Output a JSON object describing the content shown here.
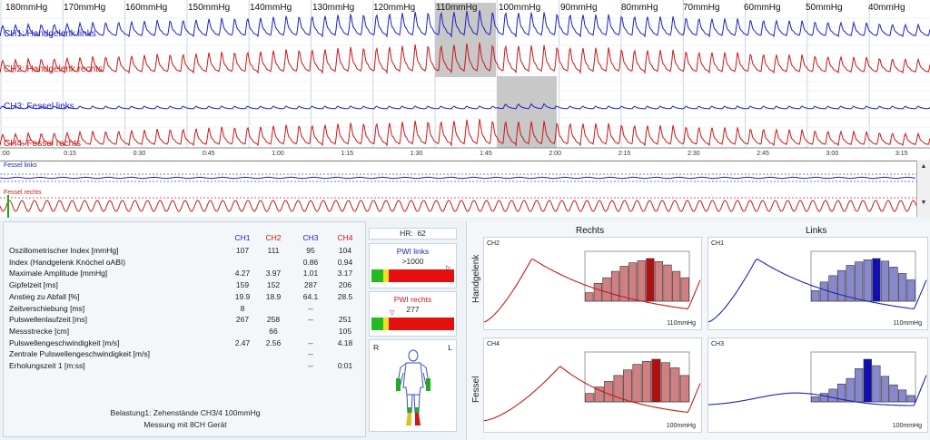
{
  "waveform": {
    "pressure_labels": [
      "180mmHg",
      "170mmHg",
      "160mmHg",
      "150mmHg",
      "140mmHg",
      "130mmHg",
      "120mmHg",
      "110mmHg",
      "100mmHg",
      "90mmHg",
      "80mmHg",
      "70mmHg",
      "60mmHg",
      "50mmHg",
      "40mmHg"
    ],
    "channels": [
      {
        "label": "CH1: Handgelenk links",
        "color": "#2020c0"
      },
      {
        "label": "CH2: Handgelenk rechts",
        "color": "#c81818"
      },
      {
        "label": "CH3: Fessel links",
        "color": "#2020c0"
      },
      {
        "label": "CH4: Fessel rechts",
        "color": "#c81818"
      }
    ],
    "time_labels": [
      ":00",
      "0:15",
      "0:30",
      "0:45",
      "1:00",
      "1:15",
      "1:30",
      "1:45",
      "2:00",
      "2:15",
      "2:30",
      "2:45",
      "3:00",
      "3:15"
    ]
  },
  "overview": {
    "top_label": "Fessel links",
    "bottom_label": "Fessel rechts"
  },
  "table": {
    "headers": [
      "CH1",
      "CH2",
      "CH3",
      "CH4"
    ],
    "header_colors": [
      "#2020c0",
      "#c81818",
      "#2020c0",
      "#c81818"
    ],
    "rows": [
      {
        "label": "Oszillometrischer Index [mmHg]",
        "values": [
          "107",
          "111",
          "95",
          "104"
        ]
      },
      {
        "label": "Index (Handgelenk Knöchel oABI)",
        "values": [
          "",
          "",
          "0.86",
          "0.94"
        ]
      },
      {
        "label": "Maximale Amplitude [mmHg]",
        "values": [
          "4.27",
          "3.97",
          "1.01",
          "3.17"
        ]
      },
      {
        "label": "Gipfelzeit [ms]",
        "values": [
          "159",
          "152",
          "287",
          "206"
        ]
      },
      {
        "label": "Anstieg zu Abfall [%]",
        "values": [
          "19.9",
          "18.9",
          "64.1",
          "28.5"
        ]
      },
      {
        "label": "Zeitverschiebung [ms]",
        "values": [
          "8",
          "",
          "--",
          ""
        ]
      },
      {
        "label": "Pulswellenlaufzeit [ms]",
        "values": [
          "267",
          "258",
          "--",
          "251"
        ]
      },
      {
        "label": "Messstrecke [cm]",
        "values": [
          "",
          "66",
          "",
          "105"
        ]
      },
      {
        "label": "Pulswellengeschwindigkeit [m/s]",
        "values": [
          "2.47",
          "2.56",
          "--",
          "4.18"
        ]
      },
      {
        "label": "Zentrale Pulswellengeschwindigkeit [m/s]",
        "values": [
          "",
          "",
          "--",
          ""
        ]
      },
      {
        "label": "Erholungszeit 1 [m:ss]",
        "values": [
          "",
          "",
          "--",
          "0:01"
        ]
      }
    ],
    "footer_1": "Belastung1: Zehenstände CH3/4 100mmHg",
    "footer_2": "Messung mit 8CH Gerät"
  },
  "hr": {
    "label": "HR:",
    "value": "62"
  },
  "pwi_links": {
    "title": "PWI links",
    "value": ">1000",
    "title_color": "#2020c0"
  },
  "pwi_rechts": {
    "title": "PWI rechts",
    "value": "277",
    "title_color": "#c81818"
  },
  "body": {
    "left": "R",
    "right": "L"
  },
  "graphs": {
    "col_rechts": "Rechts",
    "col_links": "Links",
    "row_handgelenk": "Handgelenk",
    "row_fessel": "Fessel",
    "panels": [
      {
        "tag": "CH2",
        "pressure": "110mmHg",
        "color": "#c81818",
        "fill": "#d08080",
        "peak": "#b01010"
      },
      {
        "tag": "CH1",
        "pressure": "110mmHg",
        "color": "#2020c0",
        "fill": "#8888cc",
        "peak": "#1010b0"
      },
      {
        "tag": "CH4",
        "pressure": "100mmHg",
        "color": "#c81818",
        "fill": "#d08080",
        "peak": "#b01010"
      },
      {
        "tag": "CH3",
        "pressure": "100mmHg",
        "color": "#2020c0",
        "fill": "#8888cc",
        "peak": "#1010b0"
      }
    ]
  }
}
